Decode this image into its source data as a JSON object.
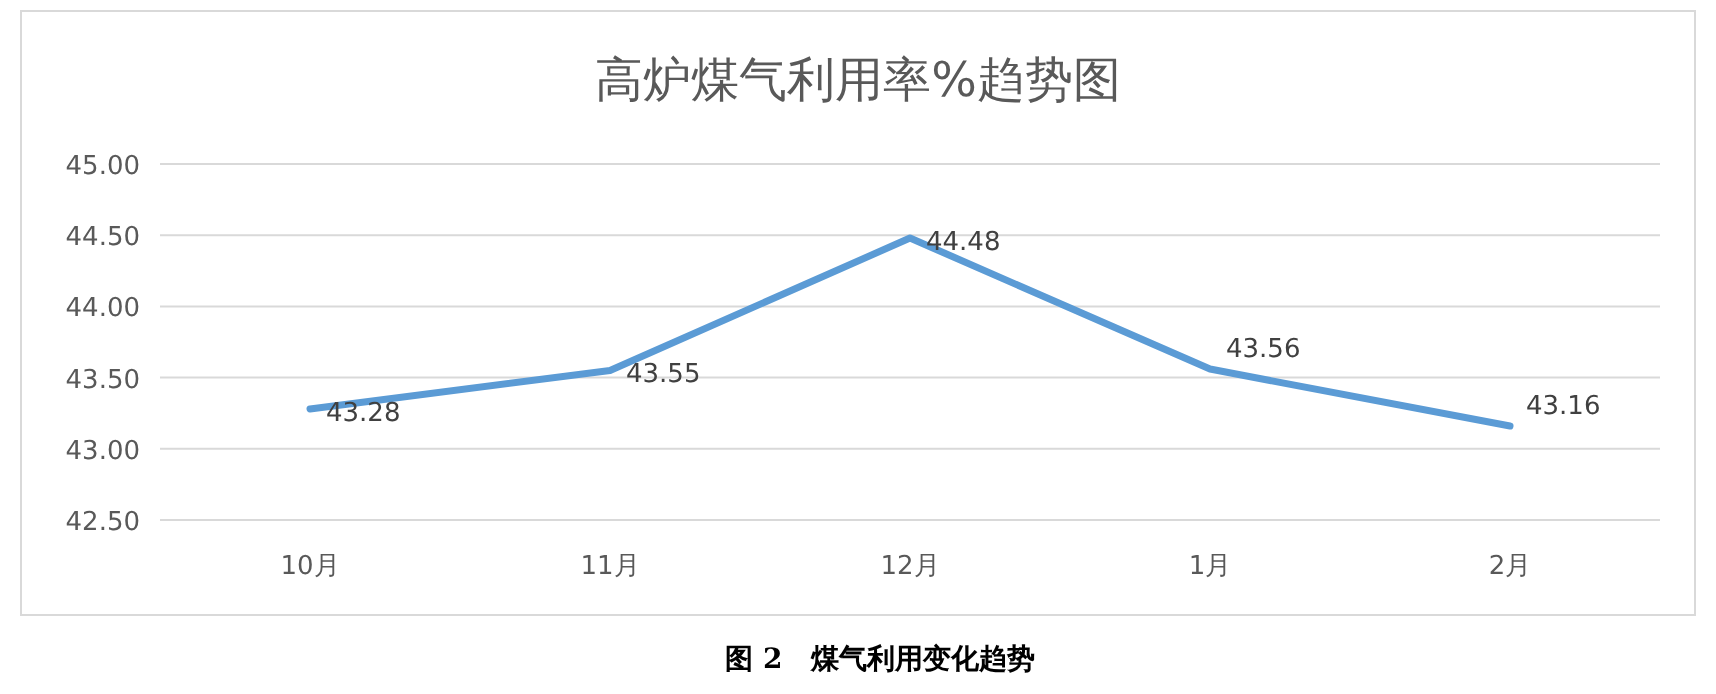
{
  "chart_data": {
    "type": "line",
    "title": "高炉煤气利用率%趋势图",
    "categories": [
      "10月",
      "11月",
      "12月",
      "1月",
      "2月"
    ],
    "series": [
      {
        "color": "#5b9bd5",
        "values": [
          43.28,
          43.55,
          44.48,
          43.56,
          43.16
        ]
      }
    ],
    "ylim": [
      42.5,
      45
    ],
    "yticks": [
      {
        "value": 42.5,
        "label": "42.50"
      },
      {
        "value": 43,
        "label": "43.00"
      },
      {
        "value": 43.5,
        "label": "43.50"
      },
      {
        "value": 44,
        "label": "44.00"
      },
      {
        "value": 44.5,
        "label": "44.50"
      },
      {
        "value": 45,
        "label": "45.00"
      }
    ],
    "grid": "y",
    "data_labels": true,
    "marker": "none",
    "line_style": "solid",
    "annotations": [
      "图 2　煤气利用变化趋势"
    ]
  }
}
